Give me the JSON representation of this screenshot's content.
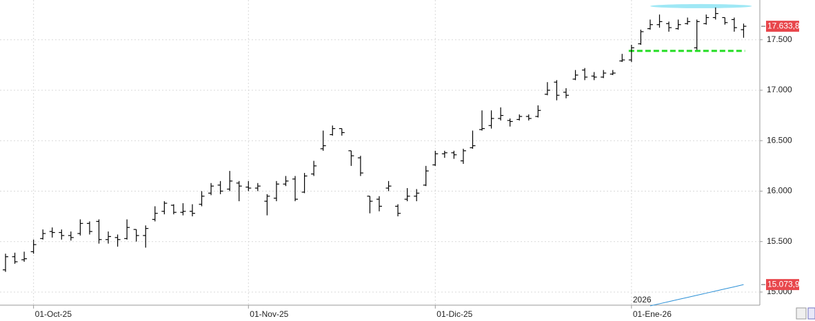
{
  "chart_data": {
    "type": "ohlc",
    "categories": [
      null,
      null,
      null,
      "01-Oct-25",
      null,
      null,
      null,
      null,
      null,
      null,
      null,
      null,
      null,
      null,
      null,
      null,
      null,
      null,
      null,
      null,
      null,
      null,
      null,
      null,
      null,
      null,
      "01-Nov-25",
      null,
      null,
      null,
      null,
      null,
      null,
      null,
      null,
      null,
      null,
      null,
      null,
      null,
      null,
      null,
      null,
      null,
      null,
      null,
      "01-Dic-25",
      null,
      null,
      null,
      null,
      null,
      null,
      null,
      null,
      null,
      null,
      null,
      null,
      null,
      null,
      null,
      null,
      null,
      null,
      null,
      null,
      "01-Ene-26",
      null,
      null,
      null,
      null,
      null,
      null,
      null,
      null,
      null,
      null,
      null,
      null
    ],
    "year_label": "2026",
    "open": [
      15220,
      15350,
      15320,
      15400,
      15530,
      15600,
      15590,
      15560,
      15580,
      15680,
      15700,
      15520,
      15540,
      15530,
      15620,
      15560,
      15720,
      15800,
      15860,
      15790,
      15800,
      15870,
      15980,
      16060,
      16020,
      16080,
      16040,
      16030,
      15900,
      15930,
      16070,
      16120,
      15990,
      16170,
      16420,
      16560,
      16620,
      16400,
      16330,
      15950,
      15920,
      16030,
      15850,
      15920,
      15950,
      16060,
      16260,
      16370,
      16380,
      16300,
      16430,
      16610,
      16650,
      16720,
      16700,
      16710,
      16740,
      16740,
      16960,
      17080,
      16980,
      17110,
      17200,
      17140,
      17130,
      17160,
      17290,
      17300,
      17460,
      17610,
      17650,
      17660,
      17610,
      17660,
      17420,
      17660,
      17720,
      17720,
      17700,
      17600
    ],
    "high": [
      15380,
      15390,
      15400,
      15520,
      15620,
      15640,
      15620,
      15600,
      15720,
      15700,
      15720,
      15600,
      15570,
      15720,
      15620,
      15660,
      15850,
      15900,
      15870,
      15880,
      15870,
      16000,
      16080,
      16100,
      16200,
      16100,
      16100,
      16080,
      15970,
      16100,
      16150,
      16150,
      16180,
      16300,
      16600,
      16650,
      16620,
      16400,
      16350,
      15950,
      15950,
      16100,
      15870,
      16030,
      16020,
      16250,
      16400,
      16400,
      16400,
      16420,
      16600,
      16800,
      16800,
      16830,
      16720,
      16760,
      16760,
      16850,
      17080,
      17100,
      17020,
      17200,
      17220,
      17180,
      17200,
      17200,
      17360,
      17450,
      17600,
      17700,
      17750,
      17680,
      17700,
      17720,
      17700,
      17750,
      17820,
      17720,
      17720,
      17660
    ],
    "low": [
      15200,
      15280,
      15300,
      15380,
      15520,
      15540,
      15520,
      15510,
      15560,
      15570,
      15480,
      15480,
      15450,
      15520,
      15500,
      15440,
      15700,
      15770,
      15770,
      15760,
      15750,
      15850,
      15960,
      15970,
      16000,
      15900,
      16000,
      16000,
      15760,
      15900,
      16050,
      15900,
      15980,
      16150,
      16400,
      16550,
      16550,
      16250,
      16150,
      15780,
      15800,
      16000,
      15750,
      15900,
      15900,
      16050,
      16250,
      16330,
      16320,
      16270,
      16420,
      16600,
      16620,
      16700,
      16640,
      16700,
      16700,
      16730,
      16950,
      16900,
      16920,
      17100,
      17100,
      17100,
      17120,
      17150,
      17280,
      17280,
      17450,
      17600,
      17620,
      17580,
      17600,
      17650,
      17400,
      17650,
      17700,
      17650,
      17580,
      17520
    ],
    "close": [
      15350,
      15300,
      15330,
      15470,
      15580,
      15590,
      15560,
      15540,
      15680,
      15600,
      15520,
      15550,
      15520,
      15640,
      15560,
      15630,
      15780,
      15880,
      15790,
      15800,
      15780,
      15950,
      16050,
      16000,
      16100,
      16050,
      16030,
      16050,
      15950,
      16070,
      16100,
      15920,
      16150,
      16250,
      16450,
      16620,
      16580,
      16350,
      16180,
      15900,
      15850,
      16050,
      15780,
      15950,
      15980,
      16200,
      16370,
      16380,
      16360,
      16400,
      16450,
      16620,
      16720,
      16750,
      16690,
      16740,
      16720,
      16800,
      17000,
      16950,
      16950,
      17150,
      17130,
      17130,
      17170,
      17170,
      17300,
      17420,
      17580,
      17650,
      17680,
      17620,
      17650,
      17680,
      17680,
      17720,
      17760,
      17670,
      17620,
      17633.8
    ],
    "bar_color": "#000000",
    "ma": {
      "color": "#2a8fd6",
      "values": [
        null,
        null,
        null,
        null,
        null,
        null,
        null,
        null,
        null,
        null,
        null,
        null,
        null,
        null,
        null,
        null,
        null,
        null,
        null,
        null,
        null,
        null,
        null,
        null,
        null,
        null,
        null,
        null,
        null,
        null,
        null,
        null,
        null,
        null,
        null,
        null,
        null,
        null,
        null,
        null,
        null,
        null,
        null,
        null,
        null,
        null,
        null,
        null,
        null,
        null,
        null,
        null,
        null,
        null,
        null,
        null,
        null,
        null,
        null,
        null,
        null,
        null,
        null,
        null,
        null,
        null,
        null,
        null,
        null,
        14863,
        14884,
        14905,
        14926,
        14947,
        14968,
        14989,
        15010,
        15031,
        15052,
        15073.9
      ]
    },
    "price_tags": [
      {
        "value": 17633.8,
        "label": "17.633,8",
        "color": "#e8474c"
      },
      {
        "value": 15073.9,
        "label": "15.073,9",
        "color": "#e8474c"
      }
    ],
    "hlines": [
      {
        "value": 17390,
        "color": "#22dd22",
        "dashed": true
      },
      {
        "value": 17833,
        "color": "#9fe8f5",
        "dashed": false
      }
    ],
    "ylim": [
      14870,
      17894
    ],
    "yticks": [
      {
        "value": 15000,
        "label": "15.000"
      },
      {
        "value": 15500,
        "label": "15.500"
      },
      {
        "value": 16000,
        "label": "16.000"
      },
      {
        "value": 16500,
        "label": "16.500"
      },
      {
        "value": 17000,
        "label": "17.000"
      },
      {
        "value": 17500,
        "label": "17.500"
      }
    ],
    "grid": true
  }
}
